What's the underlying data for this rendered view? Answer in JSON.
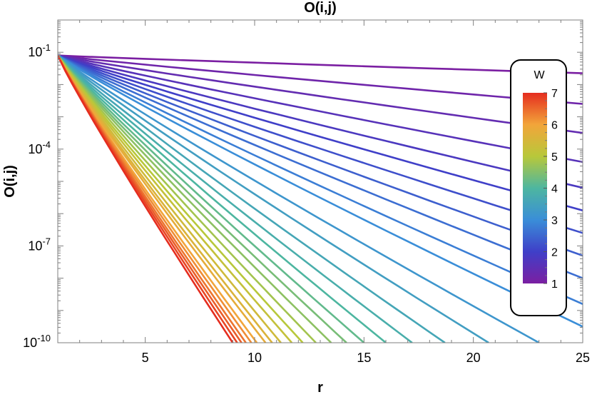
{
  "chart_data": {
    "type": "line",
    "title": "O(i,j)",
    "xlabel": "r",
    "ylabel": "O(i,j)",
    "xlim": [
      1,
      25
    ],
    "ylim": [
      1e-10,
      1.0
    ],
    "y_scale": "log",
    "x_ticks": [
      5,
      10,
      15,
      20,
      25
    ],
    "y_ticks": [
      {
        "value": 0.1,
        "base": "10",
        "exp": "-1"
      },
      {
        "value": 0.0001,
        "base": "10",
        "exp": "-4"
      },
      {
        "value": 1e-07,
        "base": "10",
        "exp": "-7"
      },
      {
        "value": 1e-10,
        "base": "10",
        "exp": "-10"
      }
    ],
    "grid": false,
    "colorbar": {
      "title": "W",
      "range": [
        1,
        7
      ],
      "ticks": [
        "1",
        "2",
        "3",
        "4",
        "5",
        "6",
        "7"
      ],
      "colors": [
        "#7b1fa2",
        "#3f3fc8",
        "#3a8ed8",
        "#4db6a0",
        "#b8c83a",
        "#f2a53a",
        "#e52d1f"
      ],
      "placement": "right"
    },
    "series": [
      {
        "W": 1.0,
        "y": [
          0.0794,
          0.0224
        ]
      },
      {
        "W": 1.2,
        "y": [
          0.0794,
          0.00251
        ]
      },
      {
        "W": 1.4,
        "y": [
          0.0794,
          0.000316
        ]
      },
      {
        "W": 1.6,
        "y": [
          0.0794,
          3.98e-05
        ]
      },
      {
        "W": 1.8,
        "y": [
          0.0794,
          6.31e-06
        ]
      },
      {
        "W": 2.0,
        "y": [
          0.0794,
          1.26e-06
        ]
      },
      {
        "W": 2.2,
        "y": [
          0.0794,
          2.51e-07
        ]
      },
      {
        "W": 2.4,
        "y": [
          0.0794,
          5.01e-08
        ]
      },
      {
        "W": 2.6,
        "y": [
          0.0794,
          1e-08
        ]
      },
      {
        "W": 2.8,
        "y": [
          0.0794,
          1.58e-09
        ]
      },
      {
        "W": 3.0,
        "y": [
          0.0794,
          3.16e-10
        ]
      },
      {
        "W": 3.2,
        "y": [
          0.0794,
          1e-10
        ],
        "x_end": 23.0
      },
      {
        "W": 3.4,
        "y": [
          0.0794,
          1e-10
        ],
        "x_end": 20.7
      },
      {
        "W": 3.6,
        "y": [
          0.0794,
          1e-10
        ],
        "x_end": 18.7
      },
      {
        "W": 3.8,
        "y": [
          0.0794,
          1e-10
        ],
        "x_end": 17.2
      },
      {
        "W": 4.0,
        "y": [
          0.0794,
          1e-10
        ],
        "x_end": 16.0
      },
      {
        "W": 4.2,
        "y": [
          0.0794,
          1e-10
        ],
        "x_end": 15.0
      },
      {
        "W": 4.4,
        "y": [
          0.0794,
          1e-10
        ],
        "x_end": 14.2
      },
      {
        "W": 4.6,
        "y": [
          0.0794,
          1e-10
        ],
        "x_end": 13.5
      },
      {
        "W": 4.8,
        "y": [
          0.0794,
          1e-10
        ],
        "x_end": 12.8
      },
      {
        "W": 5.0,
        "y": [
          0.0794,
          1e-10
        ],
        "x_end": 12.2
      },
      {
        "W": 5.2,
        "y": [
          0.0794,
          1e-10
        ],
        "x_end": 11.7
      },
      {
        "W": 5.4,
        "y": [
          0.0794,
          1e-10
        ],
        "x_end": 11.2
      },
      {
        "W": 5.6,
        "y": [
          0.0794,
          1e-10
        ],
        "x_end": 10.8
      },
      {
        "W": 5.8,
        "y": [
          0.0794,
          1e-10
        ],
        "x_end": 10.5
      },
      {
        "W": 6.0,
        "y": [
          0.0794,
          1e-10
        ],
        "x_end": 10.1
      },
      {
        "W": 6.2,
        "y": [
          0.0794,
          1e-10
        ],
        "x_end": 9.85
      },
      {
        "W": 6.4,
        "y": [
          0.0794,
          1e-10
        ],
        "x_end": 9.6
      },
      {
        "W": 6.6,
        "y": [
          0.0794,
          1e-10
        ],
        "x_end": 9.4
      },
      {
        "W": 6.8,
        "y": [
          0.0794,
          1e-10
        ],
        "x_end": 9.2
      },
      {
        "W": 7.0,
        "y": [
          0.0794,
          1e-10
        ],
        "x_end": 9.0
      }
    ]
  }
}
